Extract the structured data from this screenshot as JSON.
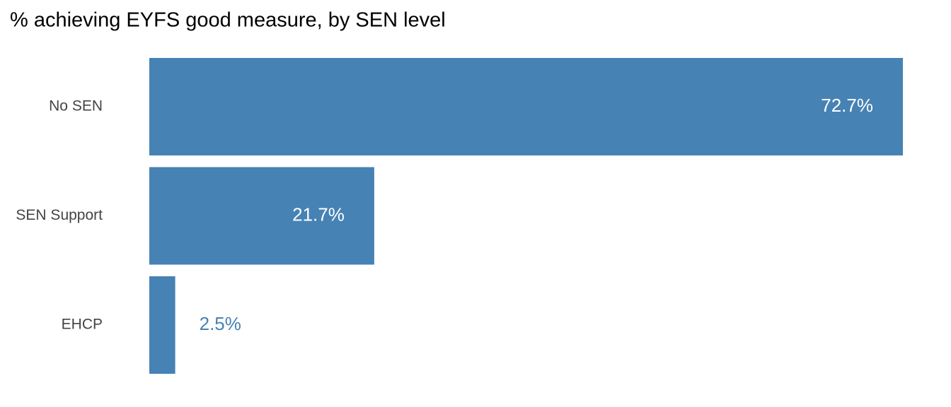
{
  "chart_data": {
    "type": "hbar",
    "title": "% achieving EYFS good measure, by SEN level",
    "categories": [
      "No SEN",
      "SEN Support",
      "EHCP"
    ],
    "values": [
      72.7,
      21.7,
      2.5
    ],
    "value_labels": [
      "72.7%",
      "21.7%",
      "2.5%"
    ],
    "color": "#4682b4"
  }
}
